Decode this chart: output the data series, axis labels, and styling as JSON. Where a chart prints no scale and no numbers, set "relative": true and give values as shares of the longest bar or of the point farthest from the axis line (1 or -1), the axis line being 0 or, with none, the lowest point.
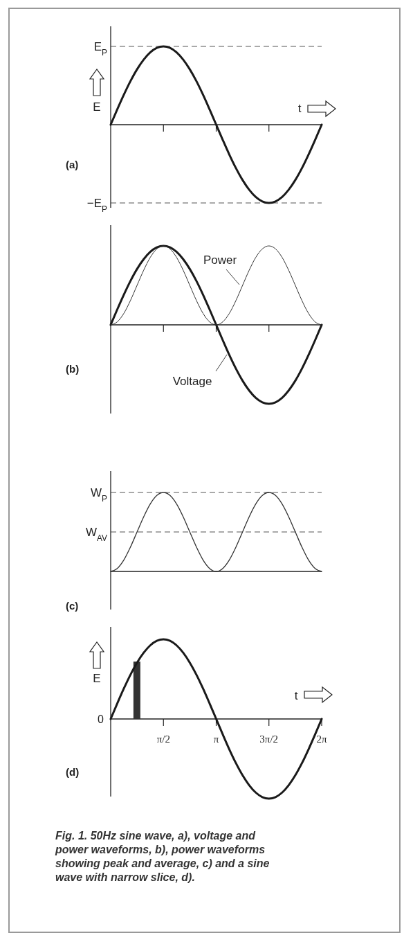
{
  "chart_data": [
    {
      "type": "line",
      "relative": true,
      "xlabel": "t",
      "ylabel": "E",
      "xlim": [
        0,
        6.283
      ],
      "xticks": [
        {
          "value": 1.571,
          "label": null
        },
        {
          "value": 3.142,
          "label": null
        },
        {
          "value": 4.712,
          "label": null
        }
      ],
      "tick_labels": false,
      "line_style": "solid",
      "marker": "none",
      "x": [
        0,
        0.196,
        0.393,
        0.589,
        0.785,
        0.982,
        1.178,
        1.374,
        1.571,
        1.767,
        1.963,
        2.16,
        2.356,
        2.553,
        2.749,
        2.945,
        3.142,
        3.338,
        3.534,
        3.731,
        3.927,
        4.123,
        4.32,
        4.516,
        4.712,
        4.909,
        5.105,
        5.301,
        5.498,
        5.694,
        5.89,
        6.087,
        6.283
      ],
      "series": [
        {
          "color": "#1a1a1a",
          "values": [
            0,
            0.195,
            0.383,
            0.556,
            0.707,
            0.831,
            0.924,
            0.981,
            1,
            0.981,
            0.924,
            0.831,
            0.707,
            0.556,
            0.383,
            0.195,
            0,
            -0.195,
            -0.383,
            -0.556,
            -0.707,
            -0.831,
            -0.924,
            -0.981,
            -1,
            -0.981,
            -0.924,
            -0.831,
            -0.707,
            -0.556,
            -0.383,
            -0.195,
            0
          ]
        }
      ],
      "ref_lines": [
        {
          "axis": "y",
          "value": 1,
          "label": "E$_{P}$",
          "color": "#555555",
          "line_style": "dashed"
        },
        {
          "axis": "y",
          "value": -1,
          "label": "−E$_{P}$",
          "color": "#555555",
          "line_style": "dashed"
        }
      ],
      "annotations": [
        "(a)"
      ]
    },
    {
      "type": "line",
      "relative": true,
      "xlim": [
        0,
        6.283
      ],
      "xticks": [
        {
          "value": 1.571,
          "label": null
        },
        {
          "value": 3.142,
          "label": null
        },
        {
          "value": 4.712,
          "label": null
        }
      ],
      "tick_labels": false,
      "line_style": "solid",
      "marker": "none",
      "x": [
        0,
        0.196,
        0.393,
        0.589,
        0.785,
        0.982,
        1.178,
        1.374,
        1.571,
        1.767,
        1.963,
        2.16,
        2.356,
        2.553,
        2.749,
        2.945,
        3.142,
        3.338,
        3.534,
        3.731,
        3.927,
        4.123,
        4.32,
        4.516,
        4.712,
        4.909,
        5.105,
        5.301,
        5.498,
        5.694,
        5.89,
        6.087,
        6.283
      ],
      "series": [
        {
          "name": "Voltage",
          "color": "#1a1a1a",
          "values": [
            0,
            0.195,
            0.383,
            0.556,
            0.707,
            0.831,
            0.924,
            0.981,
            1,
            0.981,
            0.924,
            0.831,
            0.707,
            0.556,
            0.383,
            0.195,
            0,
            -0.195,
            -0.383,
            -0.556,
            -0.707,
            -0.831,
            -0.924,
            -0.981,
            -1,
            -0.981,
            -0.924,
            -0.831,
            -0.707,
            -0.556,
            -0.383,
            -0.195,
            0
          ]
        },
        {
          "name": "Power",
          "color": "#333333",
          "values": [
            0,
            0.038,
            0.146,
            0.309,
            0.5,
            0.691,
            0.854,
            0.962,
            1,
            0.962,
            0.854,
            0.691,
            0.5,
            0.309,
            0.146,
            0.038,
            0,
            0.038,
            0.146,
            0.309,
            0.5,
            0.691,
            0.854,
            0.962,
            1,
            0.962,
            0.854,
            0.691,
            0.5,
            0.309,
            0.146,
            0.038,
            0
          ]
        }
      ],
      "annotations": [
        "(b)"
      ]
    },
    {
      "type": "line",
      "relative": true,
      "xlim": [
        0,
        6.283
      ],
      "tick_labels": false,
      "line_style": "solid",
      "marker": "none",
      "x": [
        0,
        0.196,
        0.393,
        0.589,
        0.785,
        0.982,
        1.178,
        1.374,
        1.571,
        1.767,
        1.963,
        2.16,
        2.356,
        2.553,
        2.749,
        2.945,
        3.142,
        3.338,
        3.534,
        3.731,
        3.927,
        4.123,
        4.32,
        4.516,
        4.712,
        4.909,
        5.105,
        5.301,
        5.498,
        5.694,
        5.89,
        6.087,
        6.283
      ],
      "series": [
        {
          "color": "#333333",
          "values": [
            0,
            0.038,
            0.146,
            0.309,
            0.5,
            0.691,
            0.854,
            0.962,
            1,
            0.962,
            0.854,
            0.691,
            0.5,
            0.309,
            0.146,
            0.038,
            0,
            0.038,
            0.146,
            0.309,
            0.5,
            0.691,
            0.854,
            0.962,
            1,
            0.962,
            0.854,
            0.691,
            0.5,
            0.309,
            0.146,
            0.038,
            0
          ]
        }
      ],
      "ref_lines": [
        {
          "axis": "y",
          "value": 1,
          "label": "W$_{P}$",
          "color": "#555555",
          "line_style": "dashed"
        },
        {
          "axis": "y",
          "value": 0.5,
          "label": "W$_{AV}$",
          "color": "#555555",
          "line_style": "dashed"
        }
      ],
      "annotations": [
        "(c)"
      ]
    },
    {
      "type": "line",
      "relative": true,
      "xlabel": "t",
      "ylabel": "E",
      "xlim": [
        0,
        6.283
      ],
      "xticks": [
        {
          "value": 1.571,
          "label": "π/2"
        },
        {
          "value": 3.142,
          "label": "π"
        },
        {
          "value": 4.712,
          "label": "3π/2"
        },
        {
          "value": 6.283,
          "label": "2π"
        }
      ],
      "tick_labels": "x",
      "line_style": "solid",
      "marker": "none",
      "x": [
        0,
        0.196,
        0.393,
        0.589,
        0.785,
        0.982,
        1.178,
        1.374,
        1.571,
        1.767,
        1.963,
        2.16,
        2.356,
        2.553,
        2.749,
        2.945,
        3.142,
        3.338,
        3.534,
        3.731,
        3.927,
        4.123,
        4.32,
        4.516,
        4.712,
        4.909,
        5.105,
        5.301,
        5.498,
        5.694,
        5.89,
        6.087,
        6.283
      ],
      "series": [
        {
          "color": "#1a1a1a",
          "values": [
            0,
            0.195,
            0.383,
            0.556,
            0.707,
            0.831,
            0.924,
            0.981,
            1,
            0.981,
            0.924,
            0.831,
            0.707,
            0.556,
            0.383,
            0.195,
            0,
            -0.195,
            -0.383,
            -0.556,
            -0.707,
            -0.831,
            -0.924,
            -0.981,
            -1,
            -0.981,
            -0.924,
            -0.831,
            -0.707,
            -0.556,
            -0.383,
            -0.195,
            0
          ]
        },
        {
          "type": "bar",
          "x": [
            0.78
          ],
          "color": "#333333",
          "values": [
            0.72
          ]
        }
      ],
      "annotations": [
        "(d)",
        {
          "text": "0",
          "x": 0,
          "y": 0
        },
        "Fig. 1. 50Hz sine wave, a), voltage and power waveforms, b), power waveforms showing peak and average, c) and a sine wave with narrow slice, d)."
      ]
    }
  ]
}
